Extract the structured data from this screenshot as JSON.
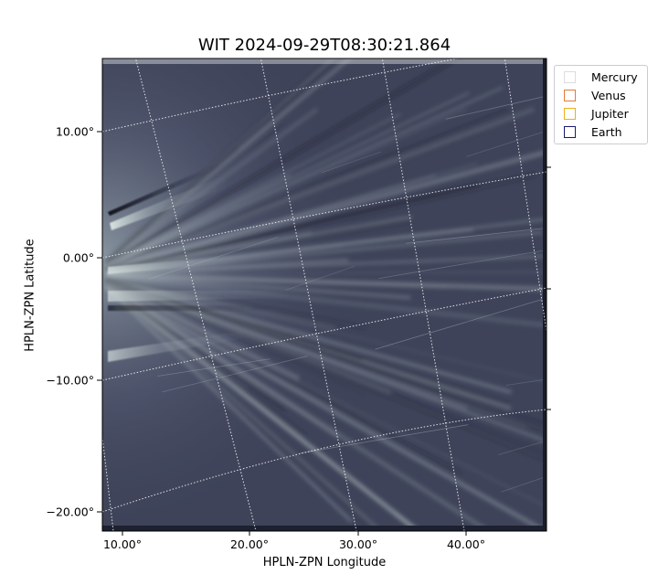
{
  "title": "WIT 2024-09-29T08:30:21.864",
  "xlabel": "HPLN-ZPN Longitude",
  "ylabel": "HPLN-ZPN Latitude",
  "x_ticks": [
    "10.00°",
    "20.00°",
    "30.00°",
    "40.00°"
  ],
  "y_ticks": [
    "10.00°",
    "0.00°",
    "−10.00°",
    "−20.00°"
  ],
  "legend": [
    {
      "label": "Mercury",
      "color": "#dddddd"
    },
    {
      "label": "Venus",
      "color": "#e07b39"
    },
    {
      "label": "Jupiter",
      "color": "#e8b020"
    },
    {
      "label": "Earth",
      "color": "#1a1a6e"
    }
  ],
  "colors": {
    "background": "#3c4158",
    "streamer_light": "#c8d4d2",
    "grid": "#ffffff"
  }
}
